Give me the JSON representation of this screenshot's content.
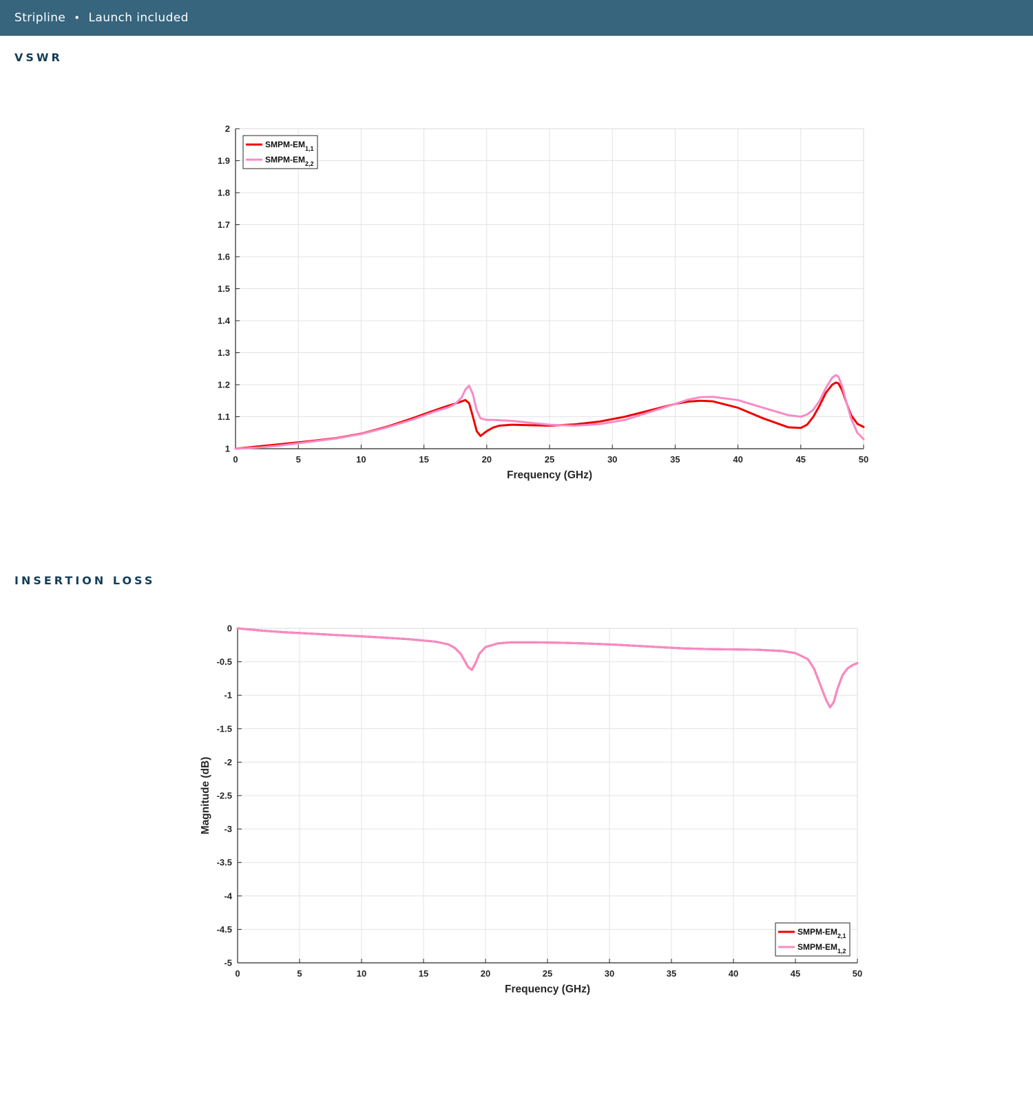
{
  "header": {
    "items": [
      "Stripline",
      "Launch included"
    ],
    "separator": "•"
  },
  "sections": {
    "vswr_title": "VSWR",
    "insertion_loss_title": "INSERTION LOSS"
  },
  "chart_data": [
    {
      "id": "vswr",
      "type": "line",
      "title": "",
      "xlabel": "Frequency (GHz)",
      "ylabel": "",
      "xlim": [
        0,
        50
      ],
      "ylim": [
        1,
        2
      ],
      "xticks": [
        0,
        5,
        10,
        15,
        20,
        25,
        30,
        35,
        40,
        45,
        50
      ],
      "yticks": [
        1,
        1.1,
        1.2,
        1.3,
        1.4,
        1.5,
        1.6,
        1.7,
        1.8,
        1.9,
        2
      ],
      "grid": true,
      "legend": "top-left",
      "series": [
        {
          "name": "SMPM-EM",
          "subscript": "1,1",
          "color": "#ee0000",
          "x": [
            0,
            2,
            4,
            6,
            8,
            10,
            12,
            14,
            16,
            17,
            17.5,
            18,
            18.3,
            18.6,
            18.9,
            19.2,
            19.5,
            20,
            20.5,
            21,
            22,
            23,
            25,
            27,
            29,
            31,
            33,
            35,
            36,
            37,
            38,
            40,
            42,
            44,
            45,
            45.5,
            46,
            46.5,
            47,
            47.5,
            47.8,
            48,
            48.3,
            48.6,
            49,
            49.5,
            50
          ],
          "y": [
            1.0,
            1.008,
            1.016,
            1.024,
            1.033,
            1.047,
            1.068,
            1.094,
            1.122,
            1.135,
            1.141,
            1.148,
            1.152,
            1.142,
            1.1,
            1.055,
            1.04,
            1.055,
            1.066,
            1.072,
            1.075,
            1.074,
            1.072,
            1.076,
            1.085,
            1.1,
            1.12,
            1.14,
            1.147,
            1.15,
            1.148,
            1.128,
            1.095,
            1.067,
            1.065,
            1.075,
            1.1,
            1.135,
            1.175,
            1.2,
            1.207,
            1.204,
            1.182,
            1.148,
            1.105,
            1.078,
            1.068
          ]
        },
        {
          "name": "SMPM-EM",
          "subscript": "2,2",
          "color": "#f78ac5",
          "x": [
            0,
            2,
            4,
            6,
            8,
            10,
            12,
            14,
            16,
            17,
            17.5,
            18,
            18.3,
            18.6,
            18.9,
            19.2,
            19.5,
            20,
            20.5,
            21,
            22,
            23,
            25,
            27,
            29,
            31,
            33,
            35,
            36,
            37,
            38,
            40,
            42,
            44,
            45,
            45.5,
            46,
            46.5,
            47,
            47.5,
            47.8,
            48,
            48.3,
            48.6,
            49,
            49.5,
            50
          ],
          "y": [
            1.0,
            1.004,
            1.012,
            1.022,
            1.032,
            1.046,
            1.066,
            1.09,
            1.118,
            1.13,
            1.14,
            1.16,
            1.185,
            1.197,
            1.17,
            1.12,
            1.095,
            1.09,
            1.09,
            1.089,
            1.087,
            1.083,
            1.075,
            1.072,
            1.077,
            1.09,
            1.115,
            1.14,
            1.153,
            1.161,
            1.162,
            1.152,
            1.128,
            1.105,
            1.1,
            1.107,
            1.122,
            1.15,
            1.19,
            1.222,
            1.23,
            1.225,
            1.195,
            1.15,
            1.095,
            1.05,
            1.03
          ]
        }
      ]
    },
    {
      "id": "insertion-loss",
      "type": "line",
      "title": "",
      "xlabel": "Frequency (GHz)",
      "ylabel": "Magnitude (dB)",
      "xlim": [
        0,
        50
      ],
      "ylim": [
        -5,
        0
      ],
      "xticks": [
        0,
        5,
        10,
        15,
        20,
        25,
        30,
        35,
        40,
        45,
        50
      ],
      "yticks": [
        0,
        -0.5,
        -1,
        -1.5,
        -2,
        -2.5,
        -3,
        -3.5,
        -4,
        -4.5,
        -5
      ],
      "grid": true,
      "legend": "bottom-right",
      "series": [
        {
          "name": "SMPM-EM",
          "subscript": "2,1",
          "color": "#ee0000",
          "x": [
            0,
            2,
            4,
            6,
            8,
            10,
            12,
            14,
            16,
            17,
            17.5,
            18,
            18.3,
            18.6,
            18.9,
            19.2,
            19.5,
            20,
            21,
            22,
            24,
            26,
            28,
            30,
            32,
            34,
            36,
            38,
            40,
            42,
            44,
            45,
            46,
            46.5,
            47,
            47.5,
            47.8,
            48.1,
            48.4,
            48.8,
            49.2,
            49.6,
            50
          ],
          "y": [
            0,
            -0.035,
            -0.06,
            -0.08,
            -0.1,
            -0.12,
            -0.14,
            -0.165,
            -0.2,
            -0.24,
            -0.29,
            -0.38,
            -0.48,
            -0.58,
            -0.62,
            -0.52,
            -0.38,
            -0.28,
            -0.225,
            -0.21,
            -0.21,
            -0.215,
            -0.225,
            -0.24,
            -0.26,
            -0.28,
            -0.3,
            -0.31,
            -0.315,
            -0.32,
            -0.34,
            -0.37,
            -0.46,
            -0.6,
            -0.84,
            -1.08,
            -1.18,
            -1.1,
            -0.9,
            -0.7,
            -0.6,
            -0.55,
            -0.52
          ]
        },
        {
          "name": "SMPM-EM",
          "subscript": "1,2",
          "color": "#f78ac5",
          "x": [
            0,
            2,
            4,
            6,
            8,
            10,
            12,
            14,
            16,
            17,
            17.5,
            18,
            18.3,
            18.6,
            18.9,
            19.2,
            19.5,
            20,
            21,
            22,
            24,
            26,
            28,
            30,
            32,
            34,
            36,
            38,
            40,
            42,
            44,
            45,
            46,
            46.5,
            47,
            47.5,
            47.8,
            48.1,
            48.4,
            48.8,
            49.2,
            49.6,
            50
          ],
          "y": [
            0,
            -0.035,
            -0.06,
            -0.08,
            -0.1,
            -0.12,
            -0.14,
            -0.165,
            -0.2,
            -0.24,
            -0.29,
            -0.38,
            -0.48,
            -0.58,
            -0.62,
            -0.52,
            -0.38,
            -0.28,
            -0.225,
            -0.21,
            -0.21,
            -0.215,
            -0.225,
            -0.24,
            -0.26,
            -0.28,
            -0.3,
            -0.31,
            -0.315,
            -0.32,
            -0.34,
            -0.37,
            -0.46,
            -0.6,
            -0.84,
            -1.08,
            -1.18,
            -1.1,
            -0.9,
            -0.7,
            -0.6,
            -0.55,
            -0.52
          ]
        }
      ]
    }
  ]
}
